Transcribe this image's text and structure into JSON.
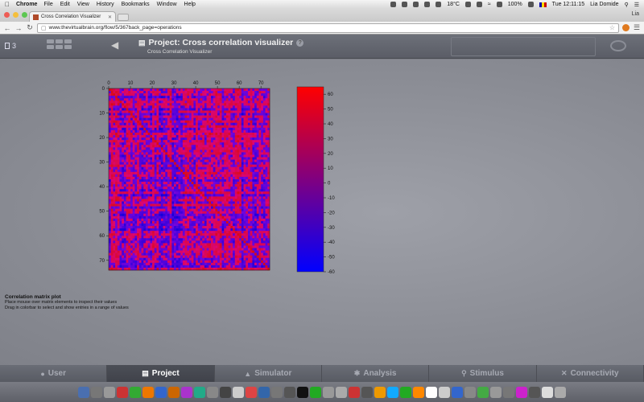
{
  "menubar": {
    "apple": "",
    "app": "Chrome",
    "items": [
      "File",
      "Edit",
      "View",
      "History",
      "Bookmarks",
      "Window",
      "Help"
    ],
    "temperature": "18°C",
    "battery": "100%",
    "clock": "Tue 12:11:15",
    "user": "Lia Domide"
  },
  "browser": {
    "tab_title": "Cross Correlation Visualizer",
    "profile": "Lia",
    "url": "www.thevirtualbrain.org/flow/5/367back_page=operations"
  },
  "header": {
    "project_count": "3",
    "title": "Project: Cross correlation visualizer",
    "subtitle": "Cross Correlation Visualizer",
    "help_label": "?"
  },
  "matrix": {
    "x_ticks": [
      "0",
      "10",
      "20",
      "30",
      "40",
      "50",
      "60",
      "70"
    ],
    "y_ticks": [
      "0",
      "10",
      "20",
      "30",
      "40",
      "50",
      "60",
      "70"
    ],
    "size": 74
  },
  "colorbar": {
    "ticks": [
      "60",
      "50",
      "40",
      "30",
      "20",
      "10",
      "0",
      "-10",
      "-20",
      "-30",
      "-40",
      "-50",
      "-60"
    ],
    "min": -60,
    "max": 65,
    "colors": {
      "top": "#ff0000",
      "middle": "#800080",
      "bottom": "#0000ff"
    }
  },
  "chart_data": {
    "type": "heatmap",
    "title": "Correlation matrix plot",
    "xlabel": "",
    "ylabel": "",
    "xlim": [
      0,
      74
    ],
    "ylim": [
      0,
      74
    ],
    "color_range": [
      -60,
      65
    ],
    "colormap": [
      "#0000ff",
      "#800080",
      "#ff0000"
    ]
  },
  "caption": {
    "title": "Correlation matrix plot",
    "line1": "Place mouse over matrix elements to inspect their values",
    "line2": "Drag in colorbar to select and show entries in a range of values"
  },
  "bottom_nav": [
    {
      "label": "User",
      "icon": "user-icon",
      "active": false
    },
    {
      "label": "Project",
      "icon": "document-icon",
      "active": true
    },
    {
      "label": "Simulator",
      "icon": "flask-icon",
      "active": false
    },
    {
      "label": "Analysis",
      "icon": "gear-icon",
      "active": false
    },
    {
      "label": "Stimulus",
      "icon": "location-icon",
      "active": false
    },
    {
      "label": "Connectivity",
      "icon": "connectivity-icon",
      "active": false
    }
  ],
  "dock": {
    "icon_colors": [
      "#4a6fb0",
      "#777",
      "#999",
      "#c33",
      "#3a3",
      "#e70",
      "#36c",
      "#c60",
      "#a3c",
      "#2a8",
      "#888",
      "#444",
      "#ccc",
      "#d44",
      "#36a",
      "#777",
      "#555",
      "#111",
      "#2a2",
      "#999",
      "#aaa",
      "#c33",
      "#555",
      "#e90",
      "#1af",
      "#2a2",
      "#f80",
      "#fff",
      "#ccc",
      "#36c",
      "#888",
      "#4a4",
      "#999",
      "#777",
      "#c2c",
      "#555",
      "#ddd",
      "#aaa"
    ]
  }
}
